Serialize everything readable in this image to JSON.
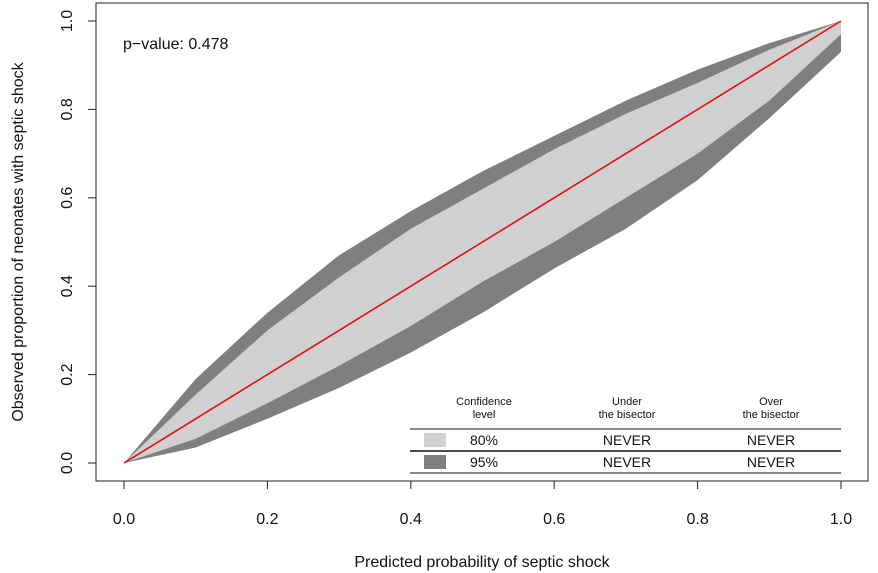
{
  "chart_data": {
    "type": "area",
    "title": "",
    "xlabel": "Predicted probability of septic shock",
    "ylabel": "Observed proportion of neonates with septic shock",
    "xlim": [
      0.0,
      1.0
    ],
    "ylim": [
      0.0,
      1.0
    ],
    "xticks": [
      "0.0",
      "0.2",
      "0.4",
      "0.6",
      "0.8",
      "1.0"
    ],
    "yticks": [
      "0.0",
      "0.2",
      "0.4",
      "0.6",
      "0.8",
      "1.0"
    ],
    "annotation": "p−value: 0.478",
    "x": [
      0.0,
      0.1,
      0.2,
      0.3,
      0.4,
      0.5,
      0.6,
      0.7,
      0.8,
      0.9,
      1.0
    ],
    "series": [
      {
        "name": "95% upper",
        "values": [
          0.0,
          0.19,
          0.34,
          0.47,
          0.57,
          0.66,
          0.74,
          0.82,
          0.89,
          0.95,
          1.0
        ]
      },
      {
        "name": "80% upper",
        "values": [
          0.0,
          0.155,
          0.3,
          0.42,
          0.53,
          0.62,
          0.71,
          0.79,
          0.86,
          0.935,
          1.0
        ]
      },
      {
        "name": "80% lower",
        "values": [
          0.0,
          0.055,
          0.135,
          0.22,
          0.31,
          0.41,
          0.5,
          0.6,
          0.7,
          0.82,
          0.97
        ]
      },
      {
        "name": "95% lower",
        "values": [
          0.0,
          0.035,
          0.1,
          0.17,
          0.25,
          0.34,
          0.44,
          0.53,
          0.64,
          0.78,
          0.93
        ]
      },
      {
        "name": "bisector",
        "values": [
          0.0,
          0.1,
          0.2,
          0.3,
          0.4,
          0.5,
          0.6,
          0.7,
          0.8,
          0.9,
          1.0
        ]
      }
    ],
    "colors": {
      "band95": "#7f7f7f",
      "band80": "#d0d0d0",
      "bisector": "#e01010"
    },
    "legend": {
      "position": "bottom-right",
      "headers": [
        "Confidence\nlevel",
        "Under\nthe bisector",
        "Over\nthe bisector"
      ],
      "rows": [
        {
          "level": "80%",
          "under": "NEVER",
          "over": "NEVER",
          "color": "#d0d0d0"
        },
        {
          "level": "95%",
          "under": "NEVER",
          "over": "NEVER",
          "color": "#7f7f7f"
        }
      ]
    }
  }
}
